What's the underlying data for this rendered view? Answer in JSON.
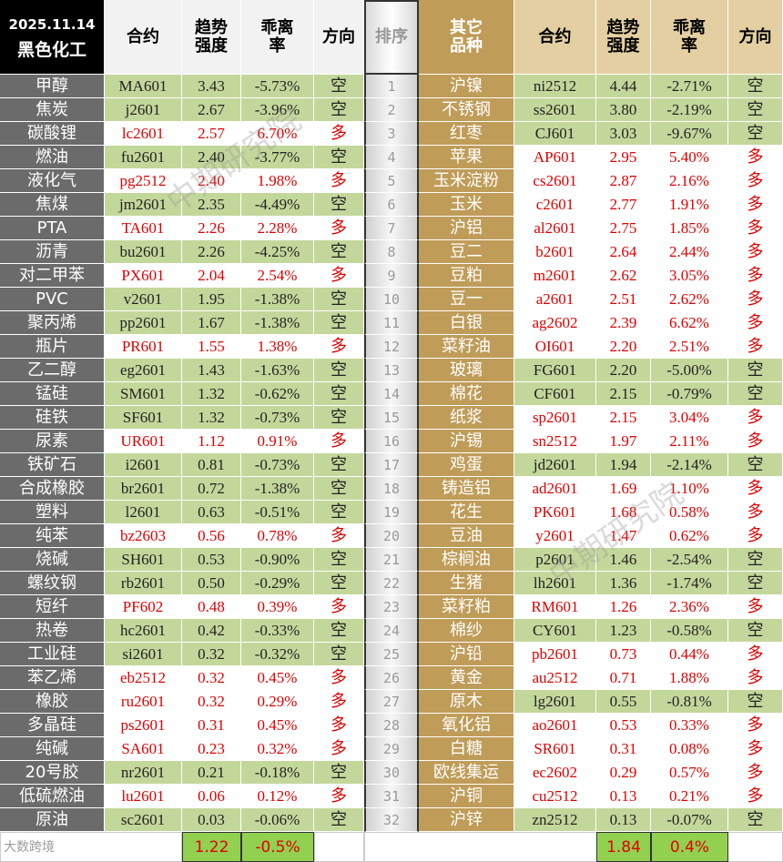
{
  "header": {
    "date": "2025.11.14",
    "left_group": "黑色化工",
    "right_group": "其它品种",
    "contract": "合约",
    "strength": "趋势强度",
    "deviation": "乖离率",
    "direction": "方向",
    "rank": "排序"
  },
  "ranks": [
    "1",
    "2",
    "3",
    "4",
    "5",
    "6",
    "7",
    "8",
    "9",
    "10",
    "11",
    "12",
    "13",
    "14",
    "15",
    "16",
    "17",
    "18",
    "19",
    "20",
    "21",
    "22",
    "23",
    "24",
    "25",
    "26",
    "27",
    "28",
    "29",
    "30",
    "31",
    "32"
  ],
  "left_rows": [
    [
      "甲醇",
      "MA601",
      "3.43",
      "-5.73%",
      "空"
    ],
    [
      "焦炭",
      "j2601",
      "2.67",
      "-3.96%",
      "空"
    ],
    [
      "碳酸锂",
      "lc2601",
      "2.57",
      "6.70%",
      "多"
    ],
    [
      "燃油",
      "fu2601",
      "2.40",
      "-3.77%",
      "空"
    ],
    [
      "液化气",
      "pg2512",
      "2.40",
      "1.98%",
      "多"
    ],
    [
      "焦煤",
      "jm2601",
      "2.35",
      "-4.49%",
      "空"
    ],
    [
      "PTA",
      "TA601",
      "2.26",
      "2.28%",
      "多"
    ],
    [
      "沥青",
      "bu2601",
      "2.26",
      "-4.25%",
      "空"
    ],
    [
      "对二甲苯",
      "PX601",
      "2.04",
      "2.54%",
      "多"
    ],
    [
      "PVC",
      "v2601",
      "1.95",
      "-1.38%",
      "空"
    ],
    [
      "聚丙烯",
      "pp2601",
      "1.67",
      "-1.38%",
      "空"
    ],
    [
      "瓶片",
      "PR601",
      "1.55",
      "1.38%",
      "多"
    ],
    [
      "乙二醇",
      "eg2601",
      "1.43",
      "-1.63%",
      "空"
    ],
    [
      "锰硅",
      "SM601",
      "1.32",
      "-0.62%",
      "空"
    ],
    [
      "硅铁",
      "SF601",
      "1.32",
      "-0.73%",
      "空"
    ],
    [
      "尿素",
      "UR601",
      "1.12",
      "0.91%",
      "多"
    ],
    [
      "铁矿石",
      "i2601",
      "0.81",
      "-0.73%",
      "空"
    ],
    [
      "合成橡胶",
      "br2601",
      "0.72",
      "-1.38%",
      "空"
    ],
    [
      "塑料",
      "l2601",
      "0.63",
      "-0.51%",
      "空"
    ],
    [
      "纯苯",
      "bz2603",
      "0.56",
      "0.78%",
      "多"
    ],
    [
      "烧碱",
      "SH601",
      "0.53",
      "-0.90%",
      "空"
    ],
    [
      "螺纹钢",
      "rb2601",
      "0.50",
      "-0.29%",
      "空"
    ],
    [
      "短纤",
      "PF602",
      "0.48",
      "0.39%",
      "多"
    ],
    [
      "热卷",
      "hc2601",
      "0.42",
      "-0.33%",
      "空"
    ],
    [
      "工业硅",
      "si2601",
      "0.32",
      "-0.32%",
      "空"
    ],
    [
      "苯乙烯",
      "eb2512",
      "0.32",
      "0.45%",
      "多"
    ],
    [
      "橡胶",
      "ru2601",
      "0.32",
      "0.29%",
      "多"
    ],
    [
      "多晶硅",
      "ps2601",
      "0.31",
      "0.45%",
      "多"
    ],
    [
      "纯碱",
      "SA601",
      "0.23",
      "0.32%",
      "多"
    ],
    [
      "20号胶",
      "nr2601",
      "0.21",
      "-0.18%",
      "空"
    ],
    [
      "低硫燃油",
      "lu2601",
      "0.06",
      "0.12%",
      "多"
    ],
    [
      "原油",
      "sc2601",
      "0.03",
      "-0.06%",
      "空"
    ]
  ],
  "right_rows": [
    [
      "沪镍",
      "ni2512",
      "4.44",
      "-2.71%",
      "空"
    ],
    [
      "不锈钢",
      "ss2601",
      "3.80",
      "-2.19%",
      "空"
    ],
    [
      "红枣",
      "CJ601",
      "3.03",
      "-9.67%",
      "空"
    ],
    [
      "苹果",
      "AP601",
      "2.95",
      "5.40%",
      "多"
    ],
    [
      "玉米淀粉",
      "cs2601",
      "2.87",
      "2.16%",
      "多"
    ],
    [
      "玉米",
      "c2601",
      "2.77",
      "1.91%",
      "多"
    ],
    [
      "沪铝",
      "al2601",
      "2.75",
      "1.85%",
      "多"
    ],
    [
      "豆二",
      "b2601",
      "2.64",
      "2.44%",
      "多"
    ],
    [
      "豆粕",
      "m2601",
      "2.62",
      "3.05%",
      "多"
    ],
    [
      "豆一",
      "a2601",
      "2.51",
      "2.62%",
      "多"
    ],
    [
      "白银",
      "ag2602",
      "2.39",
      "6.62%",
      "多"
    ],
    [
      "菜籽油",
      "OI601",
      "2.20",
      "2.51%",
      "多"
    ],
    [
      "玻璃",
      "FG601",
      "2.20",
      "-5.00%",
      "空"
    ],
    [
      "棉花",
      "CF601",
      "2.15",
      "-0.79%",
      "空"
    ],
    [
      "纸浆",
      "sp2601",
      "2.15",
      "3.04%",
      "多"
    ],
    [
      "沪锡",
      "sn2512",
      "1.97",
      "2.11%",
      "多"
    ],
    [
      "鸡蛋",
      "jd2601",
      "1.94",
      "-2.14%",
      "空"
    ],
    [
      "铸造铝",
      "ad2601",
      "1.69",
      "1.10%",
      "多"
    ],
    [
      "花生",
      "PK601",
      "1.68",
      "0.58%",
      "多"
    ],
    [
      "豆油",
      "y2601",
      "1.47",
      "0.62%",
      "多"
    ],
    [
      "棕榈油",
      "p2601",
      "1.46",
      "-2.54%",
      "空"
    ],
    [
      "生猪",
      "lh2601",
      "1.36",
      "-1.74%",
      "空"
    ],
    [
      "菜籽粕",
      "RM601",
      "1.26",
      "2.36%",
      "多"
    ],
    [
      "棉纱",
      "CY601",
      "1.23",
      "-0.58%",
      "空"
    ],
    [
      "沪铅",
      "pb2601",
      "0.73",
      "0.44%",
      "多"
    ],
    [
      "黄金",
      "au2512",
      "0.71",
      "1.88%",
      "多"
    ],
    [
      "原木",
      "lg2601",
      "0.55",
      "-0.81%",
      "空"
    ],
    [
      "氧化铝",
      "ao2601",
      "0.53",
      "0.33%",
      "多"
    ],
    [
      "白糖",
      "SR601",
      "0.31",
      "0.08%",
      "多"
    ],
    [
      "欧线集运",
      "ec2602",
      "0.29",
      "0.57%",
      "多"
    ],
    [
      "沪铜",
      "cu2512",
      "0.13",
      "0.21%",
      "多"
    ],
    [
      "沪锌",
      "zn2512",
      "0.13",
      "-0.07%",
      "空"
    ]
  ],
  "left_totals": [
    "1.22",
    "-0.5%"
  ],
  "right_totals": [
    "1.84",
    "0.4%"
  ],
  "watermark": "中期研究院",
  "logo": "大数跨境"
}
